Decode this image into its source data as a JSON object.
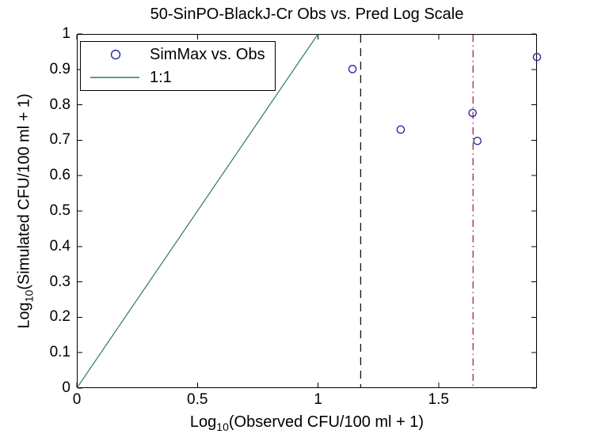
{
  "figure": {
    "background": "#ffffff"
  },
  "chart_data": {
    "type": "scatter",
    "title": "50-SinPO-BlackJ-Cr Obs vs. Pred Log Scale",
    "xlabel": "Log10(Observed CFU/100 ml + 1)",
    "ylabel": "Log10(Simulated CFU/100 ml + 1)",
    "xlabel_parts": {
      "prefix": "Log",
      "sub": "10",
      "rest": "(Observed CFU/100 ml + 1)"
    },
    "ylabel_parts": {
      "prefix": "Log",
      "sub": "10",
      "rest": "(Simulated CFU/100 ml + 1)"
    },
    "xlim": [
      0,
      1.908
    ],
    "ylim": [
      0,
      1
    ],
    "xticks": {
      "values": [
        0,
        0.5,
        1,
        1.5
      ],
      "labels": [
        "0",
        "0.5",
        "1",
        "1.5"
      ]
    },
    "yticks": {
      "values": [
        0,
        0.1,
        0.2,
        0.3,
        0.4,
        0.5,
        0.6,
        0.7,
        0.8,
        0.9,
        1
      ],
      "labels": [
        "0",
        "0.1",
        "0.2",
        "0.3",
        "0.4",
        "0.5",
        "0.6",
        "0.7",
        "0.8",
        "0.9",
        "1"
      ]
    },
    "grid": false,
    "legend_position": "top-left",
    "axis_color": "#000000",
    "background": "#ffffff",
    "series": [
      {
        "name": "SimMax vs. Obs",
        "type": "scatter",
        "marker": "open-circle",
        "color": "#2b2ba3",
        "points": [
          [
            1.143,
            0.901
          ],
          [
            1.343,
            0.73
          ],
          [
            1.641,
            0.777
          ],
          [
            1.661,
            0.698
          ],
          [
            1.908,
            0.935
          ]
        ]
      },
      {
        "name": "1:1",
        "type": "line",
        "color": "#2f7d4f",
        "points": [
          [
            0,
            0
          ],
          [
            1,
            1
          ]
        ]
      }
    ],
    "reference_lines": [
      {
        "axis": "x",
        "value": 1.177,
        "style": "dashed",
        "color": "#111111"
      },
      {
        "axis": "x",
        "value": 1.643,
        "style": "dashdot",
        "color": "#b52238"
      }
    ]
  }
}
